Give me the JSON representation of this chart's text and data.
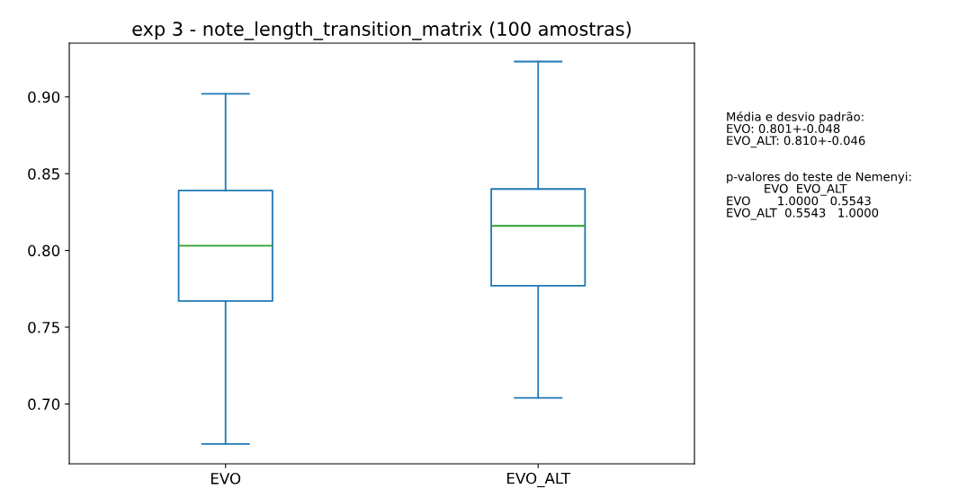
{
  "chart_data": {
    "type": "box",
    "title": "exp 3 - note_length_transition_matrix (100 amostras)",
    "categories": [
      "EVO",
      "EVO_ALT"
    ],
    "boxes": [
      {
        "low": 0.674,
        "q1": 0.767,
        "median": 0.803,
        "q3": 0.839,
        "high": 0.902
      },
      {
        "low": 0.704,
        "q1": 0.777,
        "median": 0.816,
        "q3": 0.84,
        "high": 0.923
      }
    ],
    "color": "#1f77b4",
    "ylim": [
      0.661,
      0.935
    ],
    "yticks": [
      {
        "value": 0.7,
        "label": "0.70"
      },
      0.75,
      {
        "value": 0.8,
        "label": "0.80"
      },
      0.85,
      {
        "value": 0.9,
        "label": "0.90"
      }
    ],
    "grid": false,
    "annotations": [
      "Média e desvio padrão:\nEVO: 0.801+-0.048\nEVO_ALT: 0.810+-0.046\n\n\np-valores do teste de Nemenyi:\n          EVO  EVO_ALT\nEVO       1.0000   0.5543\nEVO_ALT  0.5543   1.0000"
    ]
  }
}
